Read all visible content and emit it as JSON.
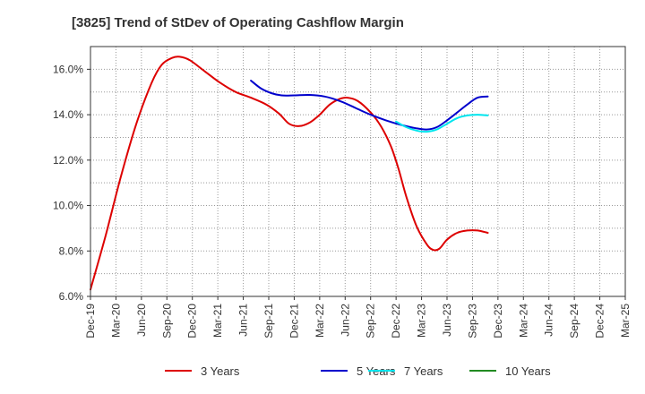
{
  "chart_data": {
    "type": "line",
    "title": "[3825]  Trend of StDev of Operating Cashflow Margin",
    "xlabel": "",
    "ylabel": "",
    "y_tick_labels": [
      "6.0%",
      "8.0%",
      "10.0%",
      "12.0%",
      "14.0%",
      "16.0%"
    ],
    "y_tick_values": [
      6,
      8,
      10,
      12,
      14,
      16
    ],
    "ylim": [
      6,
      17
    ],
    "x_tick_labels": [
      "Dec-19",
      "Mar-20",
      "Jun-20",
      "Sep-20",
      "Dec-20",
      "Mar-21",
      "Jun-21",
      "Sep-21",
      "Dec-21",
      "Mar-22",
      "Jun-22",
      "Sep-22",
      "Dec-22",
      "Mar-23",
      "Jun-23",
      "Sep-23",
      "Dec-23",
      "Mar-24",
      "Jun-24",
      "Sep-24",
      "Dec-24",
      "Mar-25"
    ],
    "grid": true,
    "legend_position": "bottom",
    "series": [
      {
        "name": "3 Years",
        "color": "#dd0000",
        "points": [
          [
            0,
            6.3
          ],
          [
            0.6,
            8.7
          ],
          [
            1.2,
            11.3
          ],
          [
            1.8,
            13.6
          ],
          [
            2.4,
            15.4
          ],
          [
            2.8,
            16.2
          ],
          [
            3.2,
            16.5
          ],
          [
            3.5,
            16.55
          ],
          [
            3.9,
            16.4
          ],
          [
            4.5,
            15.9
          ],
          [
            5.1,
            15.4
          ],
          [
            5.7,
            15.0
          ],
          [
            6.3,
            14.75
          ],
          [
            6.9,
            14.45
          ],
          [
            7.4,
            14.05
          ],
          [
            7.8,
            13.6
          ],
          [
            8.2,
            13.5
          ],
          [
            8.6,
            13.65
          ],
          [
            9.0,
            14.0
          ],
          [
            9.4,
            14.45
          ],
          [
            9.8,
            14.7
          ],
          [
            10.1,
            14.75
          ],
          [
            10.5,
            14.6
          ],
          [
            11.0,
            14.1
          ],
          [
            11.4,
            13.5
          ],
          [
            11.8,
            12.6
          ],
          [
            12.1,
            11.6
          ],
          [
            12.4,
            10.4
          ],
          [
            12.8,
            9.1
          ],
          [
            13.2,
            8.3
          ],
          [
            13.45,
            8.05
          ],
          [
            13.7,
            8.1
          ],
          [
            14.0,
            8.5
          ],
          [
            14.4,
            8.8
          ],
          [
            14.8,
            8.9
          ],
          [
            15.2,
            8.9
          ],
          [
            15.6,
            8.8
          ]
        ]
      },
      {
        "name": "5 Years",
        "color": "#0000cc",
        "points": [
          [
            6.3,
            15.5
          ],
          [
            6.7,
            15.15
          ],
          [
            7.1,
            14.95
          ],
          [
            7.5,
            14.85
          ],
          [
            8.0,
            14.85
          ],
          [
            8.6,
            14.87
          ],
          [
            9.2,
            14.8
          ],
          [
            9.8,
            14.6
          ],
          [
            10.4,
            14.3
          ],
          [
            11.0,
            14.0
          ],
          [
            11.6,
            13.75
          ],
          [
            12.2,
            13.55
          ],
          [
            12.8,
            13.4
          ],
          [
            13.2,
            13.35
          ],
          [
            13.6,
            13.45
          ],
          [
            14.0,
            13.75
          ],
          [
            14.4,
            14.1
          ],
          [
            14.8,
            14.45
          ],
          [
            15.2,
            14.75
          ],
          [
            15.6,
            14.8
          ]
        ]
      },
      {
        "name": "7 Years",
        "color": "#00e5ee",
        "points": [
          [
            12.0,
            13.7
          ],
          [
            12.4,
            13.45
          ],
          [
            12.8,
            13.3
          ],
          [
            13.2,
            13.25
          ],
          [
            13.6,
            13.35
          ],
          [
            14.0,
            13.6
          ],
          [
            14.4,
            13.85
          ],
          [
            14.8,
            13.97
          ],
          [
            15.2,
            14.0
          ],
          [
            15.6,
            13.97
          ]
        ]
      },
      {
        "name": "10 Years",
        "color": "#228b22",
        "points": []
      }
    ]
  }
}
